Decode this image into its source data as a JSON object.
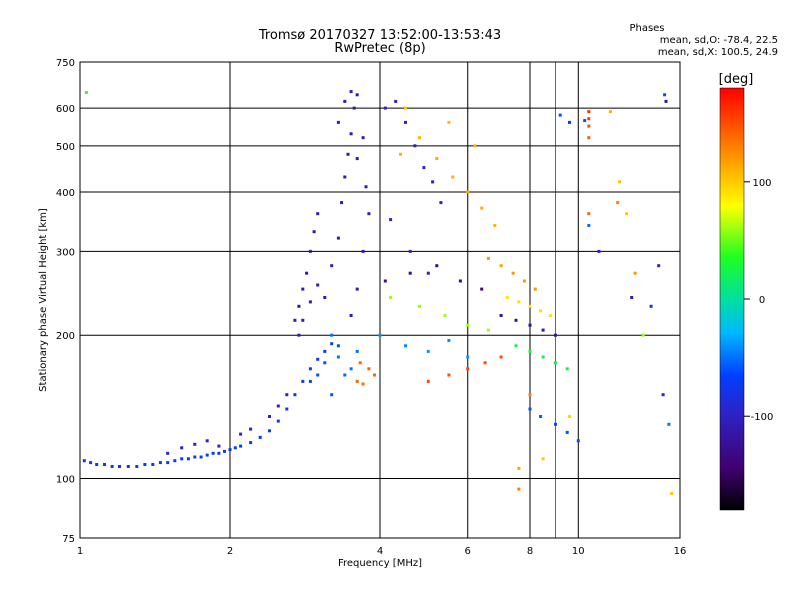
{
  "chart_data": {
    "type": "scatter",
    "title": "Tromsø 20170327 13:52:00-13:53:43",
    "subtitle": "RwPretec (8p)",
    "xlabel": "Frequency [MHz]",
    "ylabel": "Stationary phase Virtual Height [km]",
    "x_scale": "log",
    "y_scale": "log",
    "xlim": [
      1,
      16
    ],
    "ylim": [
      75,
      750
    ],
    "x_ticks": [
      1,
      2,
      4,
      6,
      8,
      10,
      16
    ],
    "y_ticks": [
      75,
      100,
      200,
      300,
      400,
      500,
      600,
      750
    ],
    "grid": true,
    "phase_note": {
      "title": "Phases",
      "line_o": "mean, sd,O: -78.4, 22.5",
      "line_x": "mean, sd,X: 100.5, 24.9"
    },
    "colorbar": {
      "label": "[deg]",
      "range": [
        -180,
        180
      ],
      "ticks": [
        100,
        0,
        -100
      ]
    },
    "points": [
      [
        1.02,
        109,
        -70
      ],
      [
        1.05,
        108,
        -68
      ],
      [
        1.08,
        107,
        -72
      ],
      [
        1.12,
        107,
        -70
      ],
      [
        1.16,
        106,
        -69
      ],
      [
        1.2,
        106,
        -71
      ],
      [
        1.25,
        106,
        -70
      ],
      [
        1.3,
        106,
        -67
      ],
      [
        1.35,
        107,
        -70
      ],
      [
        1.4,
        107,
        -72
      ],
      [
        1.45,
        108,
        -69
      ],
      [
        1.5,
        108,
        -70
      ],
      [
        1.55,
        109,
        -71
      ],
      [
        1.6,
        110,
        -68
      ],
      [
        1.65,
        110,
        -70
      ],
      [
        1.7,
        111,
        -72
      ],
      [
        1.75,
        111,
        -69
      ],
      [
        1.8,
        112,
        -70
      ],
      [
        1.85,
        113,
        -71
      ],
      [
        1.9,
        113,
        -70
      ],
      [
        1.95,
        114,
        -69
      ],
      [
        2.0,
        115,
        -70
      ],
      [
        2.05,
        116,
        -72
      ],
      [
        2.1,
        117,
        -70
      ],
      [
        2.2,
        119,
        -68
      ],
      [
        2.3,
        122,
        -70
      ],
      [
        2.4,
        126,
        -71
      ],
      [
        2.5,
        132,
        -69
      ],
      [
        2.6,
        140,
        -70
      ],
      [
        2.7,
        150,
        -72
      ],
      [
        2.8,
        160,
        -70
      ],
      [
        2.9,
        170,
        -68
      ],
      [
        3.0,
        178,
        -70
      ],
      [
        3.1,
        185,
        -71
      ],
      [
        3.2,
        192,
        -69
      ],
      [
        1.5,
        113,
        -100
      ],
      [
        1.6,
        116,
        -102
      ],
      [
        1.7,
        118,
        -98
      ],
      [
        1.8,
        120,
        -101
      ],
      [
        1.9,
        117,
        -99
      ],
      [
        2.1,
        124,
        -100
      ],
      [
        2.2,
        127,
        -97
      ],
      [
        2.4,
        135,
        -100
      ],
      [
        2.5,
        142,
        -103
      ],
      [
        2.6,
        150,
        -98
      ],
      [
        2.7,
        215,
        -110
      ],
      [
        2.75,
        230,
        -112
      ],
      [
        2.8,
        250,
        -108
      ],
      [
        2.85,
        270,
        -111
      ],
      [
        2.9,
        300,
        -109
      ],
      [
        2.95,
        330,
        -110
      ],
      [
        3.0,
        360,
        -112
      ],
      [
        2.75,
        200,
        -105
      ],
      [
        2.8,
        215,
        -108
      ],
      [
        2.9,
        235,
        -106
      ],
      [
        3.0,
        255,
        -109
      ],
      [
        3.1,
        240,
        -107
      ],
      [
        3.2,
        280,
        -108
      ],
      [
        3.3,
        320,
        -110
      ],
      [
        3.35,
        380,
        -112
      ],
      [
        3.4,
        430,
        -111
      ],
      [
        3.45,
        480,
        -110
      ],
      [
        3.5,
        530,
        -112
      ],
      [
        3.55,
        600,
        -109
      ],
      [
        3.6,
        640,
        -111
      ],
      [
        3.3,
        560,
        -108
      ],
      [
        3.4,
        620,
        -110
      ],
      [
        3.5,
        650,
        -107
      ],
      [
        3.6,
        470,
        -112
      ],
      [
        3.7,
        520,
        -109
      ],
      [
        3.75,
        410,
        -110
      ],
      [
        3.8,
        360,
        -108
      ],
      [
        3.7,
        300,
        -111
      ],
      [
        3.6,
        250,
        -110
      ],
      [
        3.5,
        220,
        -109
      ],
      [
        3.2,
        200,
        -50
      ],
      [
        3.3,
        180,
        -48
      ],
      [
        3.4,
        165,
        -52
      ],
      [
        3.5,
        170,
        -49
      ],
      [
        3.6,
        185,
        -51
      ],
      [
        3.1,
        175,
        -60
      ],
      [
        3.0,
        165,
        -58
      ],
      [
        2.9,
        160,
        -62
      ],
      [
        3.2,
        150,
        -59
      ],
      [
        3.3,
        190,
        -61
      ],
      [
        3.6,
        160,
        140
      ],
      [
        3.7,
        158,
        138
      ],
      [
        3.8,
        170,
        142
      ],
      [
        3.9,
        165,
        139
      ],
      [
        3.65,
        175,
        141
      ],
      [
        4.1,
        600,
        -100
      ],
      [
        4.3,
        620,
        -102
      ],
      [
        4.5,
        560,
        -98
      ],
      [
        4.7,
        500,
        -101
      ],
      [
        4.9,
        450,
        -99
      ],
      [
        5.1,
        420,
        -103
      ],
      [
        5.3,
        380,
        -100
      ],
      [
        4.2,
        350,
        -97
      ],
      [
        4.6,
        300,
        -101
      ],
      [
        5.0,
        270,
        -100
      ],
      [
        4.4,
        480,
        110
      ],
      [
        4.8,
        520,
        108
      ],
      [
        5.2,
        470,
        112
      ],
      [
        5.6,
        430,
        109
      ],
      [
        6.0,
        400,
        111
      ],
      [
        6.4,
        370,
        110
      ],
      [
        6.8,
        340,
        108
      ],
      [
        4.5,
        600,
        105
      ],
      [
        5.5,
        560,
        107
      ],
      [
        6.2,
        500,
        109
      ],
      [
        4.0,
        200,
        -40
      ],
      [
        4.5,
        190,
        -42
      ],
      [
        5.0,
        185,
        -38
      ],
      [
        5.5,
        195,
        -41
      ],
      [
        6.0,
        180,
        -39
      ],
      [
        4.2,
        240,
        60
      ],
      [
        4.8,
        230,
        58
      ],
      [
        5.4,
        220,
        62
      ],
      [
        6.0,
        210,
        59
      ],
      [
        6.6,
        205,
        61
      ],
      [
        4.1,
        260,
        -130
      ],
      [
        4.6,
        270,
        -128
      ],
      [
        5.2,
        280,
        -132
      ],
      [
        5.8,
        260,
        -129
      ],
      [
        6.4,
        250,
        -131
      ],
      [
        5.0,
        160,
        150
      ],
      [
        5.5,
        165,
        148
      ],
      [
        6.0,
        170,
        152
      ],
      [
        6.5,
        175,
        149
      ],
      [
        7.0,
        180,
        151
      ],
      [
        6.6,
        290,
        120
      ],
      [
        7.0,
        280,
        118
      ],
      [
        7.4,
        270,
        122
      ],
      [
        7.8,
        260,
        119
      ],
      [
        8.2,
        250,
        121
      ],
      [
        7.0,
        220,
        -120
      ],
      [
        7.5,
        215,
        -118
      ],
      [
        8.0,
        210,
        -122
      ],
      [
        8.5,
        205,
        -119
      ],
      [
        9.0,
        200,
        -121
      ],
      [
        7.2,
        240,
        90
      ],
      [
        7.6,
        235,
        92
      ],
      [
        8.0,
        230,
        88
      ],
      [
        8.4,
        225,
        91
      ],
      [
        8.8,
        220,
        89
      ],
      [
        7.5,
        190,
        20
      ],
      [
        8.0,
        185,
        22
      ],
      [
        8.5,
        180,
        18
      ],
      [
        9.0,
        175,
        21
      ],
      [
        9.5,
        170,
        19
      ],
      [
        8.0,
        140,
        -60
      ],
      [
        8.4,
        135,
        -58
      ],
      [
        9.0,
        130,
        -62
      ],
      [
        9.5,
        125,
        -59
      ],
      [
        10.0,
        120,
        -61
      ],
      [
        7.6,
        95,
        130
      ],
      [
        7.6,
        105,
        115
      ],
      [
        8.0,
        150,
        130
      ],
      [
        8.5,
        110,
        100
      ],
      [
        9.6,
        135,
        95
      ],
      [
        10.5,
        590,
        160
      ],
      [
        10.5,
        570,
        155
      ],
      [
        10.5,
        550,
        150
      ],
      [
        10.5,
        520,
        145
      ],
      [
        10.5,
        360,
        140
      ],
      [
        10.5,
        340,
        -50
      ],
      [
        10.3,
        565,
        -60
      ],
      [
        11.6,
        590,
        110
      ],
      [
        12.1,
        420,
        105
      ],
      [
        12.5,
        360,
        100
      ],
      [
        12.8,
        240,
        -110
      ],
      [
        13.0,
        270,
        120
      ],
      [
        13.5,
        200,
        60
      ],
      [
        14.0,
        230,
        -80
      ],
      [
        14.5,
        280,
        -100
      ],
      [
        14.8,
        150,
        -90
      ],
      [
        14.9,
        640,
        -60
      ],
      [
        15.0,
        620,
        -120
      ],
      [
        15.2,
        130,
        -50
      ],
      [
        15.4,
        93,
        100
      ],
      [
        1.03,
        647,
        40
      ],
      [
        9.2,
        580,
        -60
      ],
      [
        9.6,
        560,
        -70
      ],
      [
        12.0,
        380,
        130
      ],
      [
        11.0,
        300,
        -100
      ]
    ]
  }
}
